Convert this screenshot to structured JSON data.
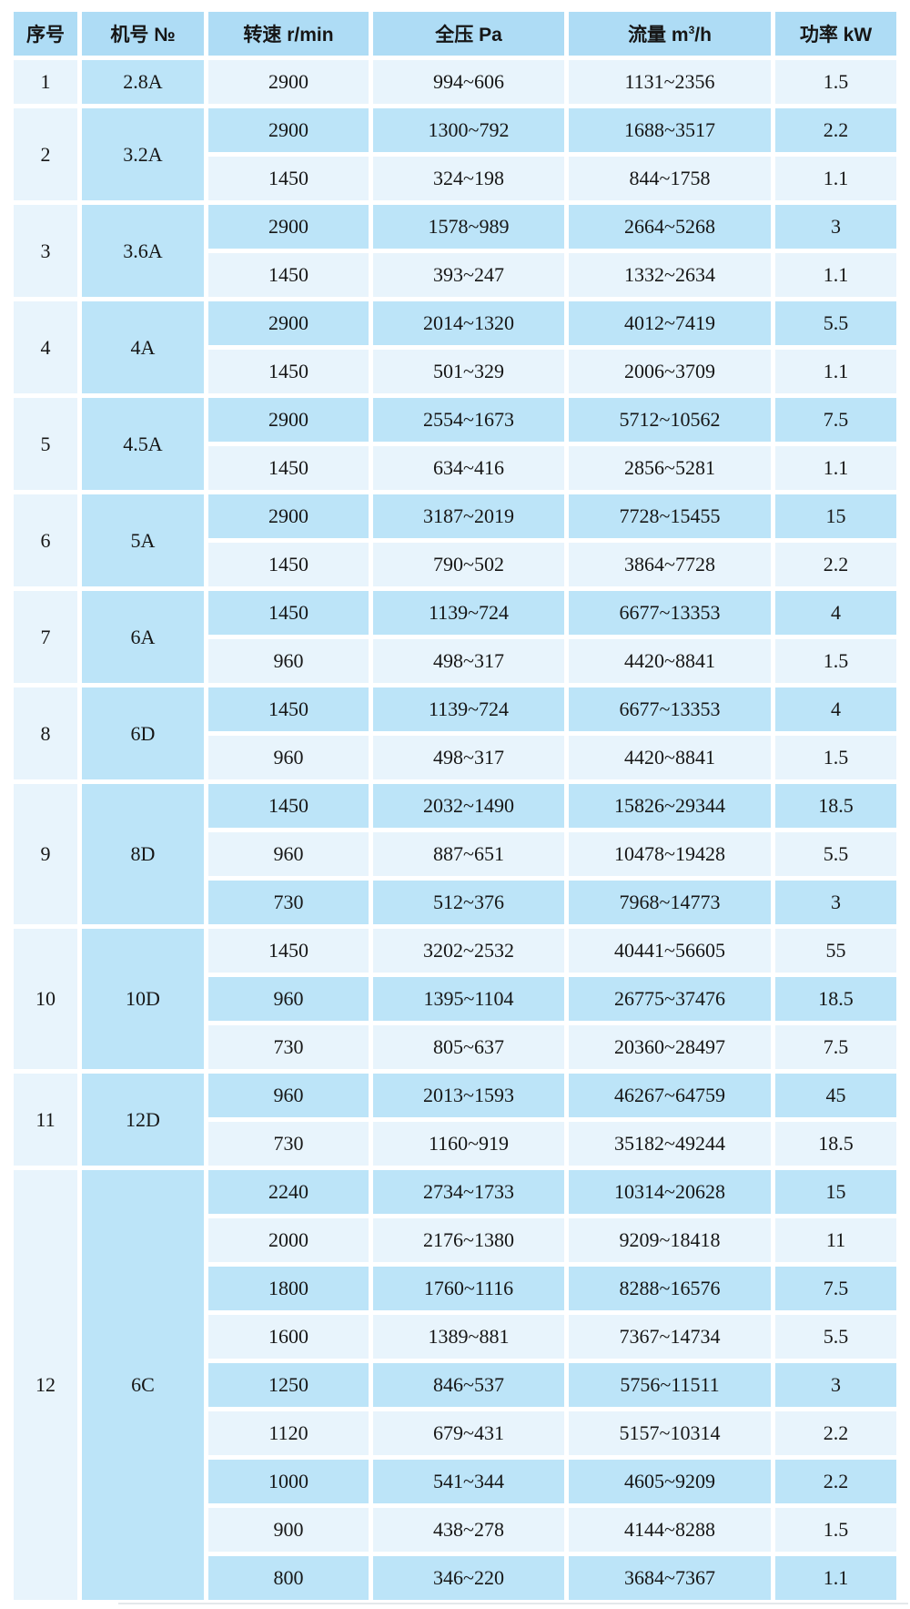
{
  "colors": {
    "page_bg": "#ffffff",
    "header_bg": "#aedcf5",
    "row_medium": "#bce4f8",
    "row_light": "#e8f4fc",
    "serial_col_bg": "#e8f4fc",
    "model_col_bg": "#bce4f8",
    "text": "#161616",
    "grid": "#ffffff"
  },
  "chart_data": {
    "type": "table",
    "columns": [
      {
        "key": "serial",
        "label": "序号"
      },
      {
        "key": "model",
        "label": "机号 №"
      },
      {
        "key": "speed",
        "label": "转速 r/min"
      },
      {
        "key": "pressure",
        "label": "全压 Pa"
      },
      {
        "key": "flow",
        "label": "流量 m",
        "sup": "3",
        "label_tail": "/h"
      },
      {
        "key": "power",
        "label": "功率 kW"
      }
    ],
    "rows": [
      [
        1,
        "2.8A",
        2900,
        "994~606",
        "1131~2356",
        1.5
      ],
      [
        2,
        "3.2A",
        2900,
        "1300~792",
        "1688~3517",
        2.2
      ],
      [
        2,
        "3.2A",
        1450,
        "324~198",
        "844~1758",
        1.1
      ],
      [
        3,
        "3.6A",
        2900,
        "1578~989",
        "2664~5268",
        3
      ],
      [
        3,
        "3.6A",
        1450,
        "393~247",
        "1332~2634",
        1.1
      ],
      [
        4,
        "4A",
        2900,
        "2014~1320",
        "4012~7419",
        5.5
      ],
      [
        4,
        "4A",
        1450,
        "501~329",
        "2006~3709",
        1.1
      ],
      [
        5,
        "4.5A",
        2900,
        "2554~1673",
        "5712~10562",
        7.5
      ],
      [
        5,
        "4.5A",
        1450,
        "634~416",
        "2856~5281",
        1.1
      ],
      [
        6,
        "5A",
        2900,
        "3187~2019",
        "7728~15455",
        15
      ],
      [
        6,
        "5A",
        1450,
        "790~502",
        "3864~7728",
        2.2
      ],
      [
        7,
        "6A",
        1450,
        "1139~724",
        "6677~13353",
        4
      ],
      [
        7,
        "6A",
        960,
        "498~317",
        "4420~8841",
        1.5
      ],
      [
        8,
        "6D",
        1450,
        "1139~724",
        "6677~13353",
        4
      ],
      [
        8,
        "6D",
        960,
        "498~317",
        "4420~8841",
        1.5
      ],
      [
        9,
        "8D",
        1450,
        "2032~1490",
        "15826~29344",
        18.5
      ],
      [
        9,
        "8D",
        960,
        "887~651",
        "10478~19428",
        5.5
      ],
      [
        9,
        "8D",
        730,
        "512~376",
        "7968~14773",
        3
      ],
      [
        10,
        "10D",
        1450,
        "3202~2532",
        "40441~56605",
        55
      ],
      [
        10,
        "10D",
        960,
        "1395~1104",
        "26775~37476",
        18.5
      ],
      [
        10,
        "10D",
        730,
        "805~637",
        "20360~28497",
        7.5
      ],
      [
        11,
        "12D",
        960,
        "2013~1593",
        "46267~64759",
        45
      ],
      [
        11,
        "12D",
        730,
        "1160~919",
        "35182~49244",
        18.5
      ],
      [
        12,
        "6C",
        2240,
        "2734~1733",
        "10314~20628",
        15
      ],
      [
        12,
        "6C",
        2000,
        "2176~1380",
        "9209~18418",
        11
      ],
      [
        12,
        "6C",
        1800,
        "1760~1116",
        "8288~16576",
        7.5
      ],
      [
        12,
        "6C",
        1600,
        "1389~881",
        "7367~14734",
        5.5
      ],
      [
        12,
        "6C",
        1250,
        "846~537",
        "5756~11511",
        3
      ],
      [
        12,
        "6C",
        1120,
        "679~431",
        "5157~10314",
        2.2
      ],
      [
        12,
        "6C",
        1000,
        "541~344",
        "4605~9209",
        2.2
      ],
      [
        12,
        "6C",
        900,
        "438~278",
        "4144~8288",
        1.5
      ],
      [
        12,
        "6C",
        800,
        "346~220",
        "3684~7367",
        1.1
      ]
    ]
  }
}
